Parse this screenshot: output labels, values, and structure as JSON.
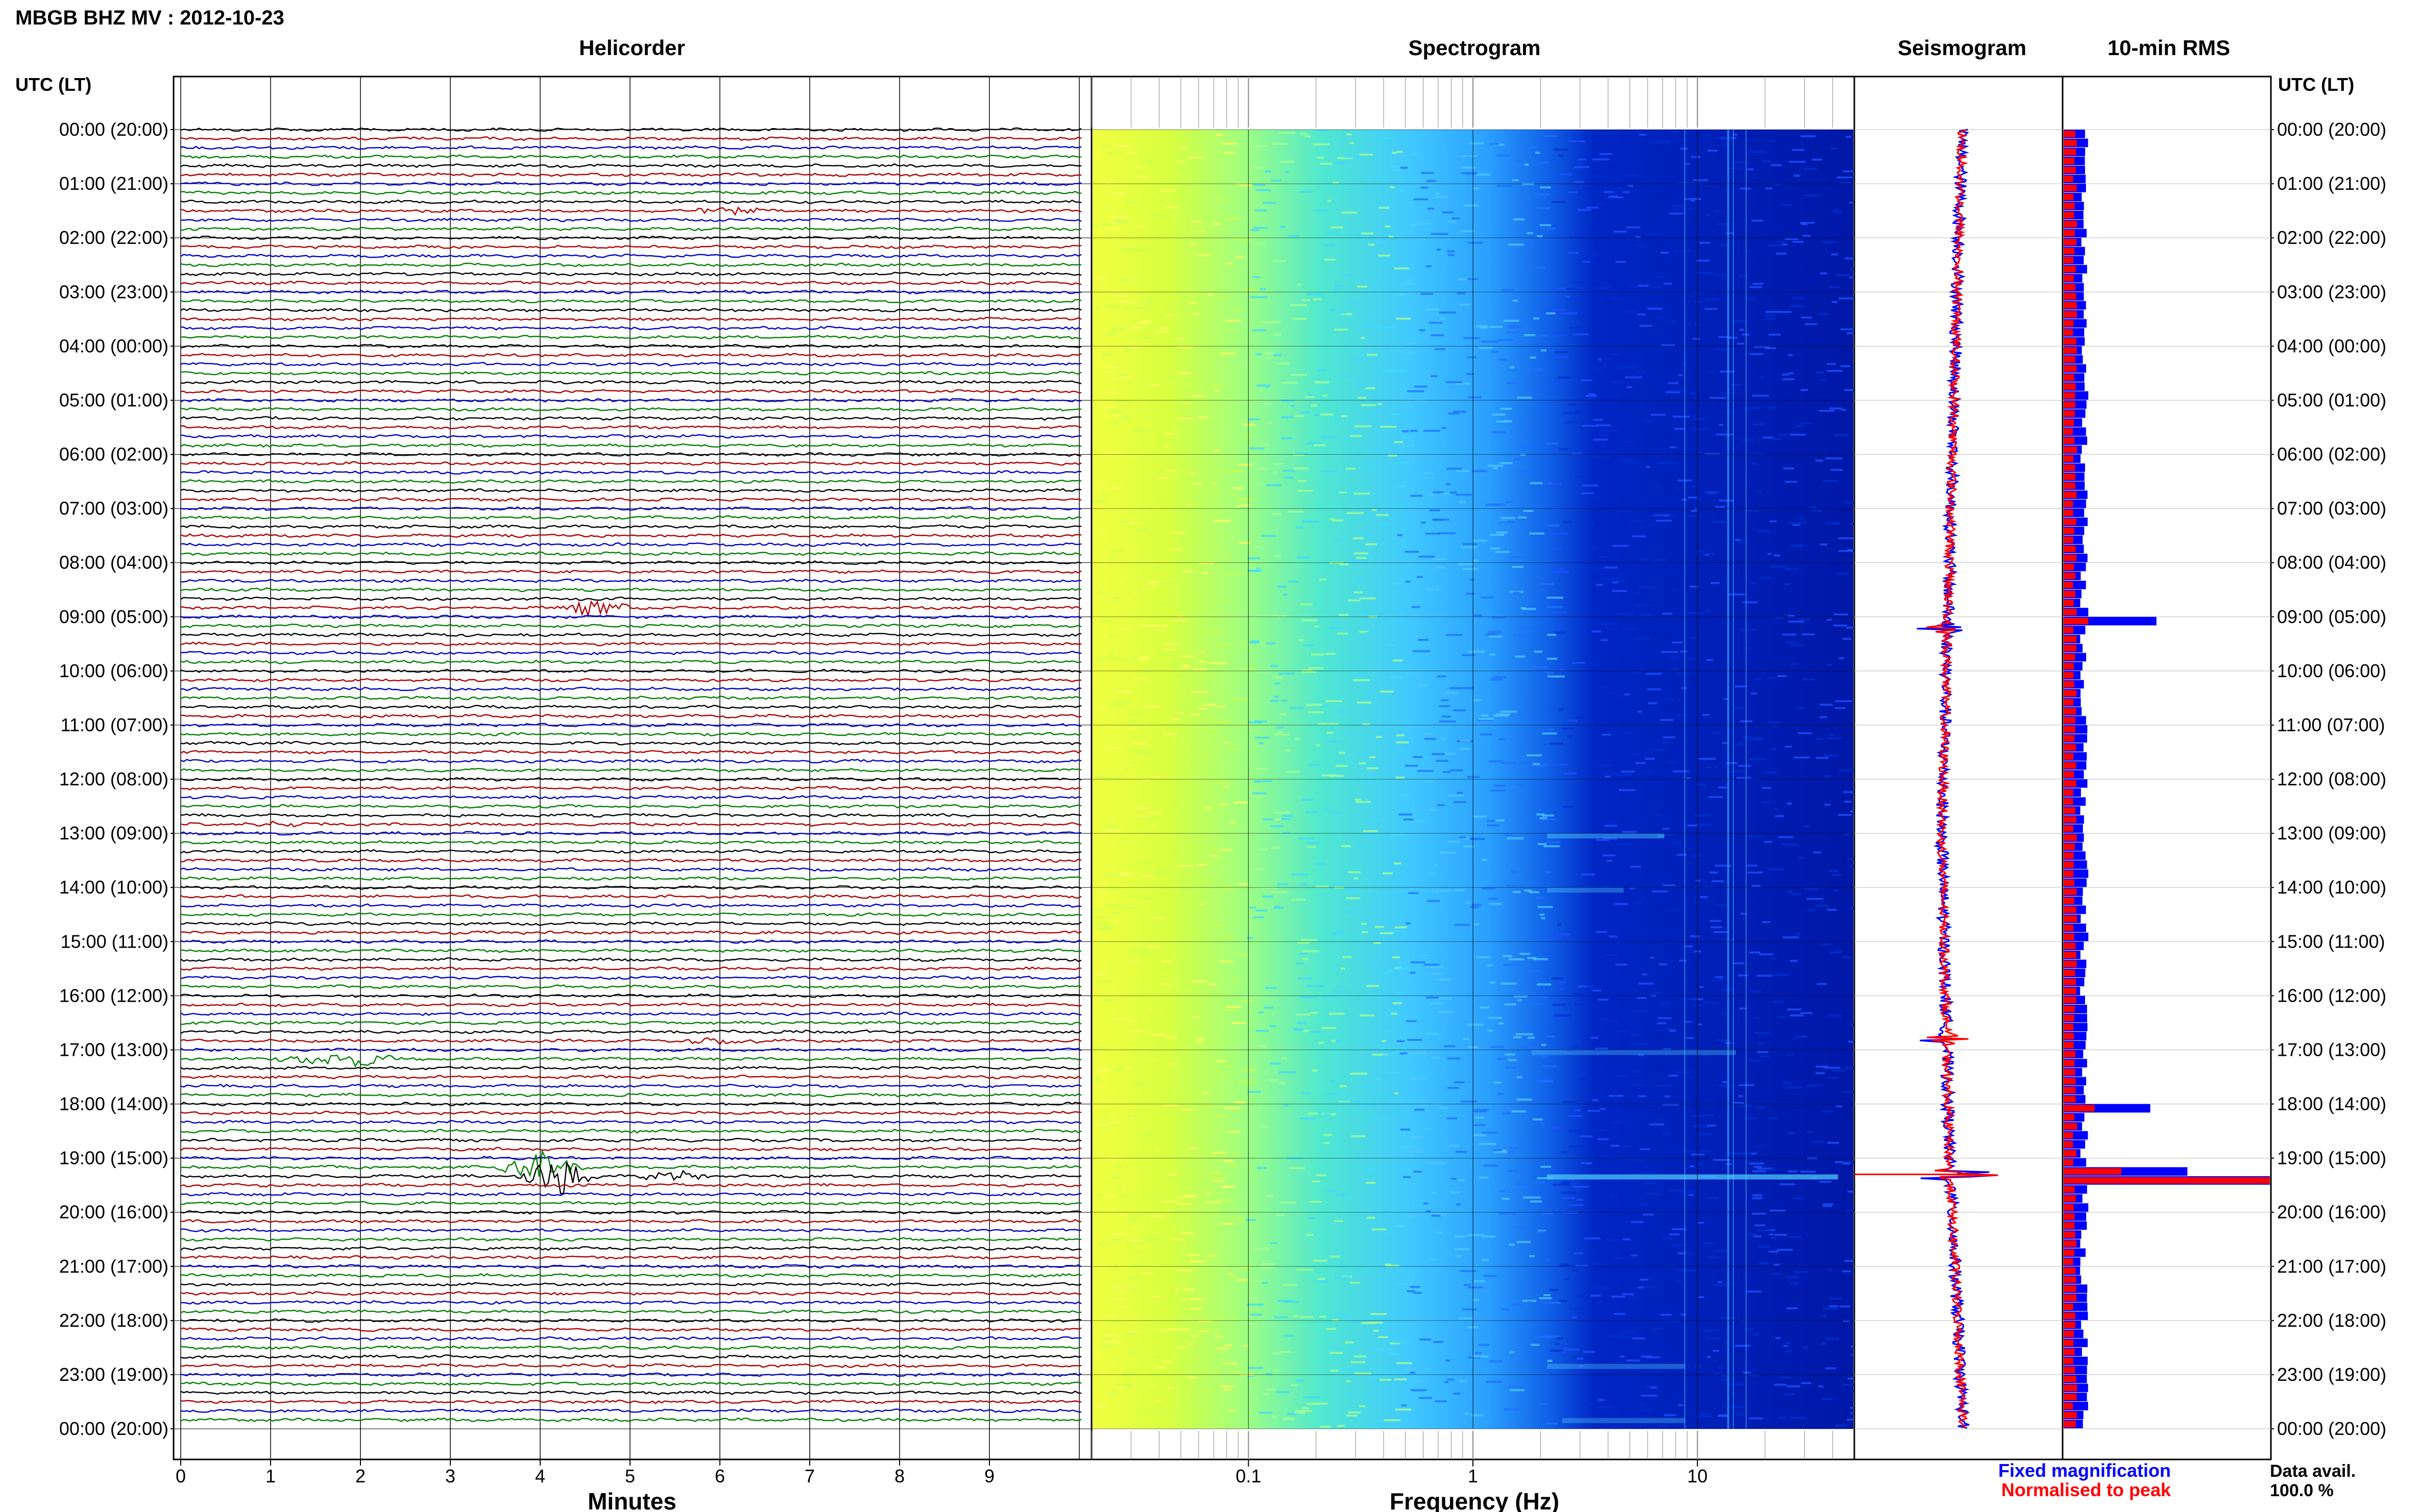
{
  "title": "MBGB BHZ MV : 2012-10-23",
  "panels": {
    "helicorder": "Helicorder",
    "spectrogram": "Spectrogram",
    "seismogram": "Seismogram",
    "rms": "10-min RMS"
  },
  "time_axis_label": "UTC (LT)",
  "time_labels": [
    "00:00 (20:00)",
    "01:00 (21:00)",
    "02:00 (22:00)",
    "03:00 (23:00)",
    "04:00 (00:00)",
    "05:00 (01:00)",
    "06:00 (02:00)",
    "07:00 (03:00)",
    "08:00 (04:00)",
    "09:00 (05:00)",
    "10:00 (06:00)",
    "11:00 (07:00)",
    "12:00 (08:00)",
    "13:00 (09:00)",
    "14:00 (10:00)",
    "15:00 (11:00)",
    "16:00 (12:00)",
    "17:00 (13:00)",
    "18:00 (14:00)",
    "19:00 (15:00)",
    "20:00 (16:00)",
    "21:00 (17:00)",
    "22:00 (18:00)",
    "23:00 (19:00)",
    "00:00 (20:00)"
  ],
  "minutes_axis": {
    "label": "Minutes",
    "ticks": [
      "0",
      "1",
      "2",
      "3",
      "4",
      "5",
      "6",
      "7",
      "8",
      "9"
    ]
  },
  "frequency_axis": {
    "label": "Frequency (Hz)",
    "ticks": [
      "0.1",
      "1",
      "10"
    ]
  },
  "legend": {
    "fixed": "Fixed magnification",
    "normalised": "Normalised to peak",
    "fixed_color": "#0000ff",
    "normalised_color": "#ff0000"
  },
  "data_avail": {
    "label": "Data avail.",
    "value": "100.0 %"
  },
  "trace_colors": [
    "#000000",
    "#b00000",
    "#0000c8",
    "#008000"
  ],
  "chart_data": [
    {
      "type": "line",
      "panel": "helicorder",
      "x_unit": "minutes",
      "xlim": [
        0,
        10
      ],
      "rows_per_hour": 6,
      "hours": 24,
      "events": [
        {
          "hour": 1,
          "line": 3,
          "minute": 6.1,
          "amp": 6
        },
        {
          "hour": 8,
          "line": 5,
          "minute": 4.6,
          "amp": 14
        },
        {
          "hour": 12,
          "line": 5,
          "minute": 1.1,
          "amp": 4
        },
        {
          "hour": 16,
          "line": 5,
          "minute": 6.0,
          "amp": 7
        },
        {
          "hour": 17,
          "line": 1,
          "minute": 1.5,
          "amp": 10
        },
        {
          "hour": 17,
          "line": 1,
          "minute": 2.0,
          "amp": 12
        },
        {
          "hour": 19,
          "line": 1,
          "minute": 4.0,
          "amp": 30
        },
        {
          "hour": 19,
          "line": 2,
          "minute": 4.2,
          "amp": 40
        },
        {
          "hour": 19,
          "line": 2,
          "minute": 5.5,
          "amp": 9
        }
      ]
    },
    {
      "type": "heatmap",
      "panel": "spectrogram",
      "x_unit": "Hz",
      "x_scale": "log",
      "xlim": [
        0.02,
        50
      ],
      "y_unit": "hours UTC",
      "ylim": [
        0,
        24
      ],
      "colormap": [
        "#ffff40",
        "#80ff80",
        "#40e0ff",
        "#2080ff",
        "#0020c0"
      ]
    },
    {
      "type": "line",
      "panel": "seismogram",
      "series": [
        {
          "name": "Fixed magnification",
          "color": "#0000ff"
        },
        {
          "name": "Normalised to peak",
          "color": "#ff0000"
        }
      ],
      "spikes": [
        {
          "hour": 9.2,
          "size": 0.5
        },
        {
          "hour": 16.8,
          "size": 0.3
        },
        {
          "hour": 19.3,
          "size": 1.0
        }
      ]
    },
    {
      "type": "bar",
      "panel": "rms",
      "orientation": "horizontal",
      "interval_minutes": 10,
      "ylim": [
        0,
        24
      ],
      "series": [
        {
          "name": "Fixed magnification",
          "color": "#0000ff"
        },
        {
          "name": "Normalised to peak",
          "color": "#ff0000"
        }
      ],
      "peaks": [
        {
          "hour": 9.1,
          "fixed": 0.45,
          "normalised": 0.12
        },
        {
          "hour": 18.05,
          "fixed": 0.42,
          "normalised": 0.15
        },
        {
          "hour": 19.25,
          "fixed": 0.6,
          "normalised": 0.28
        },
        {
          "hour": 19.4,
          "fixed": 1.0,
          "normalised": 1.0
        }
      ]
    }
  ]
}
